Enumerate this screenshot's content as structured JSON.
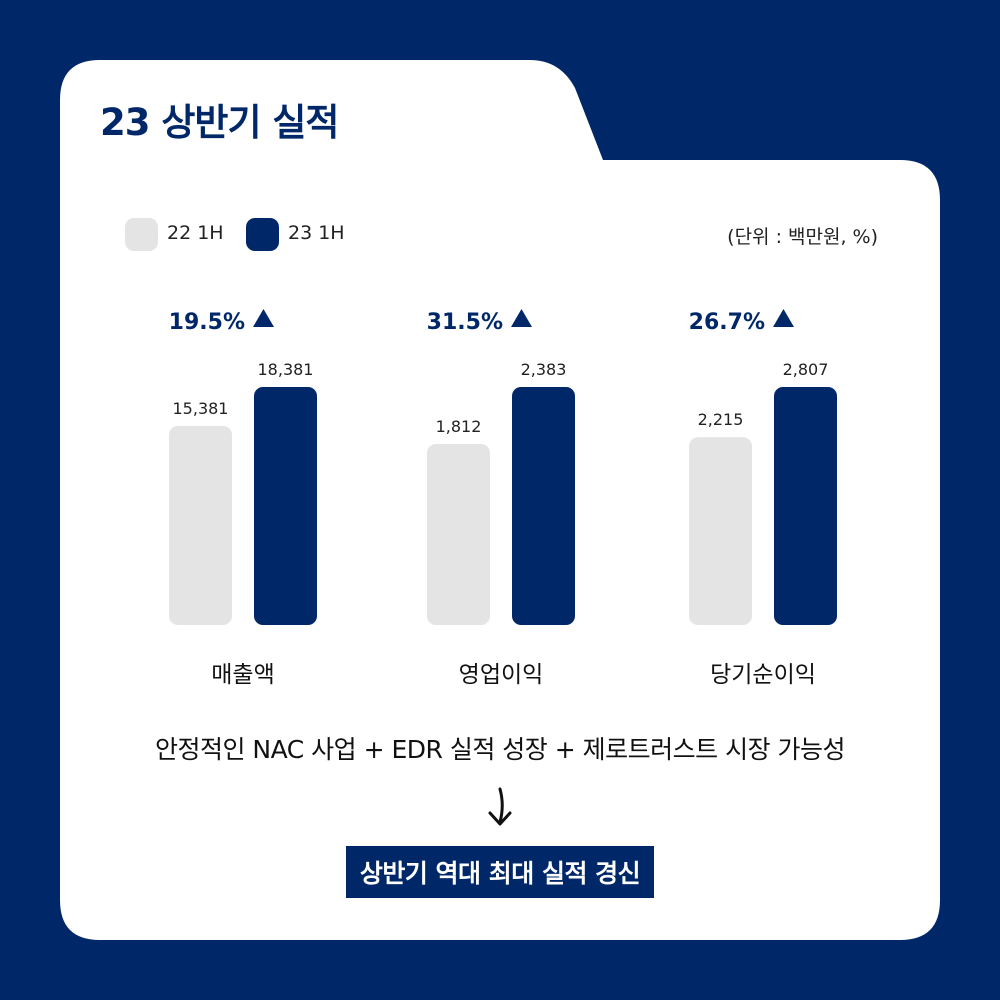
{
  "page": {
    "title": "23 상반기 실적",
    "unit_note": "(단위 : 백만원, %)",
    "description": "안정적인 NAC 사업 + EDR 실적 성장 + 제로트러스트 시장 가능성",
    "result": "상반기 역대 최대 실적 경신",
    "colors": {
      "background": "#002868",
      "card": "#ffffff",
      "prev": "#e4e4e4",
      "curr": "#002868"
    }
  },
  "chart_data": {
    "type": "bar",
    "categories": [
      "매출액",
      "영업이익",
      "당기순이익"
    ],
    "series": [
      {
        "name": "22 1H",
        "values": [
          15381,
          1812,
          2215
        ],
        "labels": [
          "15,381",
          "1,812",
          "2,215"
        ],
        "color": "#e4e4e4"
      },
      {
        "name": "23 1H",
        "values": [
          18381,
          2383,
          2807
        ],
        "labels": [
          "18,381",
          "2,383",
          "2,807"
        ],
        "color": "#002868"
      }
    ],
    "growth": [
      {
        "label": "19.5%",
        "icon": "triangle-up-icon"
      },
      {
        "label": "31.5%",
        "icon": "triangle-up-icon"
      },
      {
        "label": "26.7%",
        "icon": "triangle-up-icon"
      }
    ],
    "legend": "top-left",
    "grid": false
  }
}
